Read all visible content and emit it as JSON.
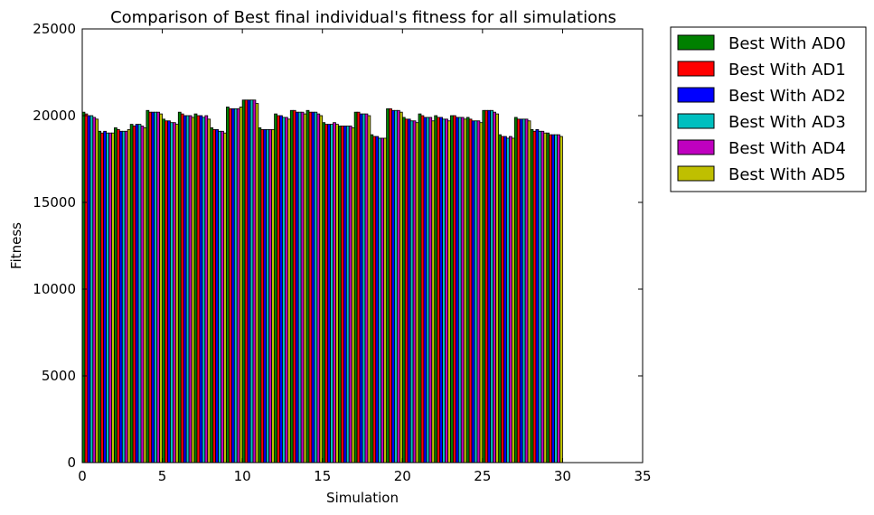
{
  "chart_data": {
    "type": "bar",
    "title": "Comparison of Best final individual's fitness for all simulations",
    "xlabel": "Simulation",
    "ylabel": "Fitness",
    "xlim": [
      0,
      35
    ],
    "ylim": [
      0,
      25000
    ],
    "xticks": [
      0,
      5,
      10,
      15,
      20,
      25,
      30,
      35
    ],
    "yticks": [
      0,
      5000,
      10000,
      15000,
      20000,
      25000
    ],
    "grid": false,
    "legend_position": "outside-right",
    "categories": [
      0,
      1,
      2,
      3,
      4,
      5,
      6,
      7,
      8,
      9,
      10,
      11,
      12,
      13,
      14,
      15,
      16,
      17,
      18,
      19,
      20,
      21,
      22,
      23,
      24,
      25,
      26,
      27,
      28,
      29
    ],
    "series": [
      {
        "name": "Best With AD0",
        "color": "#008000",
        "values": [
          20200,
          19100,
          19300,
          19500,
          20300,
          19800,
          20200,
          20100,
          19300,
          20500,
          20900,
          19300,
          20100,
          20300,
          20300,
          19600,
          19400,
          20200,
          18900,
          20400,
          19900,
          20100,
          20000,
          20000,
          19900,
          20300,
          18900,
          19900,
          19200,
          19000
        ]
      },
      {
        "name": "Best With AD1",
        "color": "#ff0000",
        "values": [
          20100,
          19000,
          19200,
          19400,
          20200,
          19700,
          20100,
          20000,
          19200,
          20400,
          20900,
          19200,
          20000,
          20300,
          20200,
          19500,
          19400,
          20200,
          18800,
          20400,
          19800,
          20000,
          19900,
          20000,
          19800,
          20300,
          18800,
          19800,
          19100,
          18900
        ]
      },
      {
        "name": "Best With AD2",
        "color": "#0000ff",
        "values": [
          20000,
          19100,
          19100,
          19500,
          20200,
          19700,
          20000,
          20000,
          19200,
          20400,
          20900,
          19200,
          20000,
          20200,
          20200,
          19500,
          19400,
          20100,
          18800,
          20300,
          19800,
          19900,
          19900,
          19900,
          19700,
          20300,
          18800,
          19800,
          19200,
          18900
        ]
      },
      {
        "name": "Best With AD3",
        "color": "#00bfbf",
        "values": [
          20000,
          19000,
          19100,
          19500,
          20200,
          19600,
          20000,
          19900,
          19100,
          20400,
          20900,
          19200,
          19900,
          20200,
          20200,
          19500,
          19400,
          20100,
          18700,
          20300,
          19700,
          19900,
          19800,
          19900,
          19700,
          20300,
          18700,
          19800,
          19100,
          18900
        ]
      },
      {
        "name": "Best With AD4",
        "color": "#bf00bf",
        "values": [
          19900,
          19000,
          19100,
          19400,
          20200,
          19600,
          20000,
          20000,
          19100,
          20400,
          20900,
          19200,
          19900,
          20200,
          20100,
          19600,
          19400,
          20100,
          18700,
          20300,
          19700,
          19900,
          19800,
          19900,
          19700,
          20200,
          18800,
          19800,
          19100,
          18900
        ]
      },
      {
        "name": "Best With AD5",
        "color": "#bfbf00",
        "values": [
          19800,
          19000,
          19200,
          19300,
          20100,
          19500,
          19900,
          19800,
          19000,
          20500,
          20700,
          19200,
          19800,
          20100,
          20000,
          19500,
          19300,
          20000,
          18700,
          20200,
          19600,
          19700,
          19700,
          19800,
          19600,
          20100,
          18700,
          19700,
          19000,
          18800
        ]
      }
    ]
  }
}
